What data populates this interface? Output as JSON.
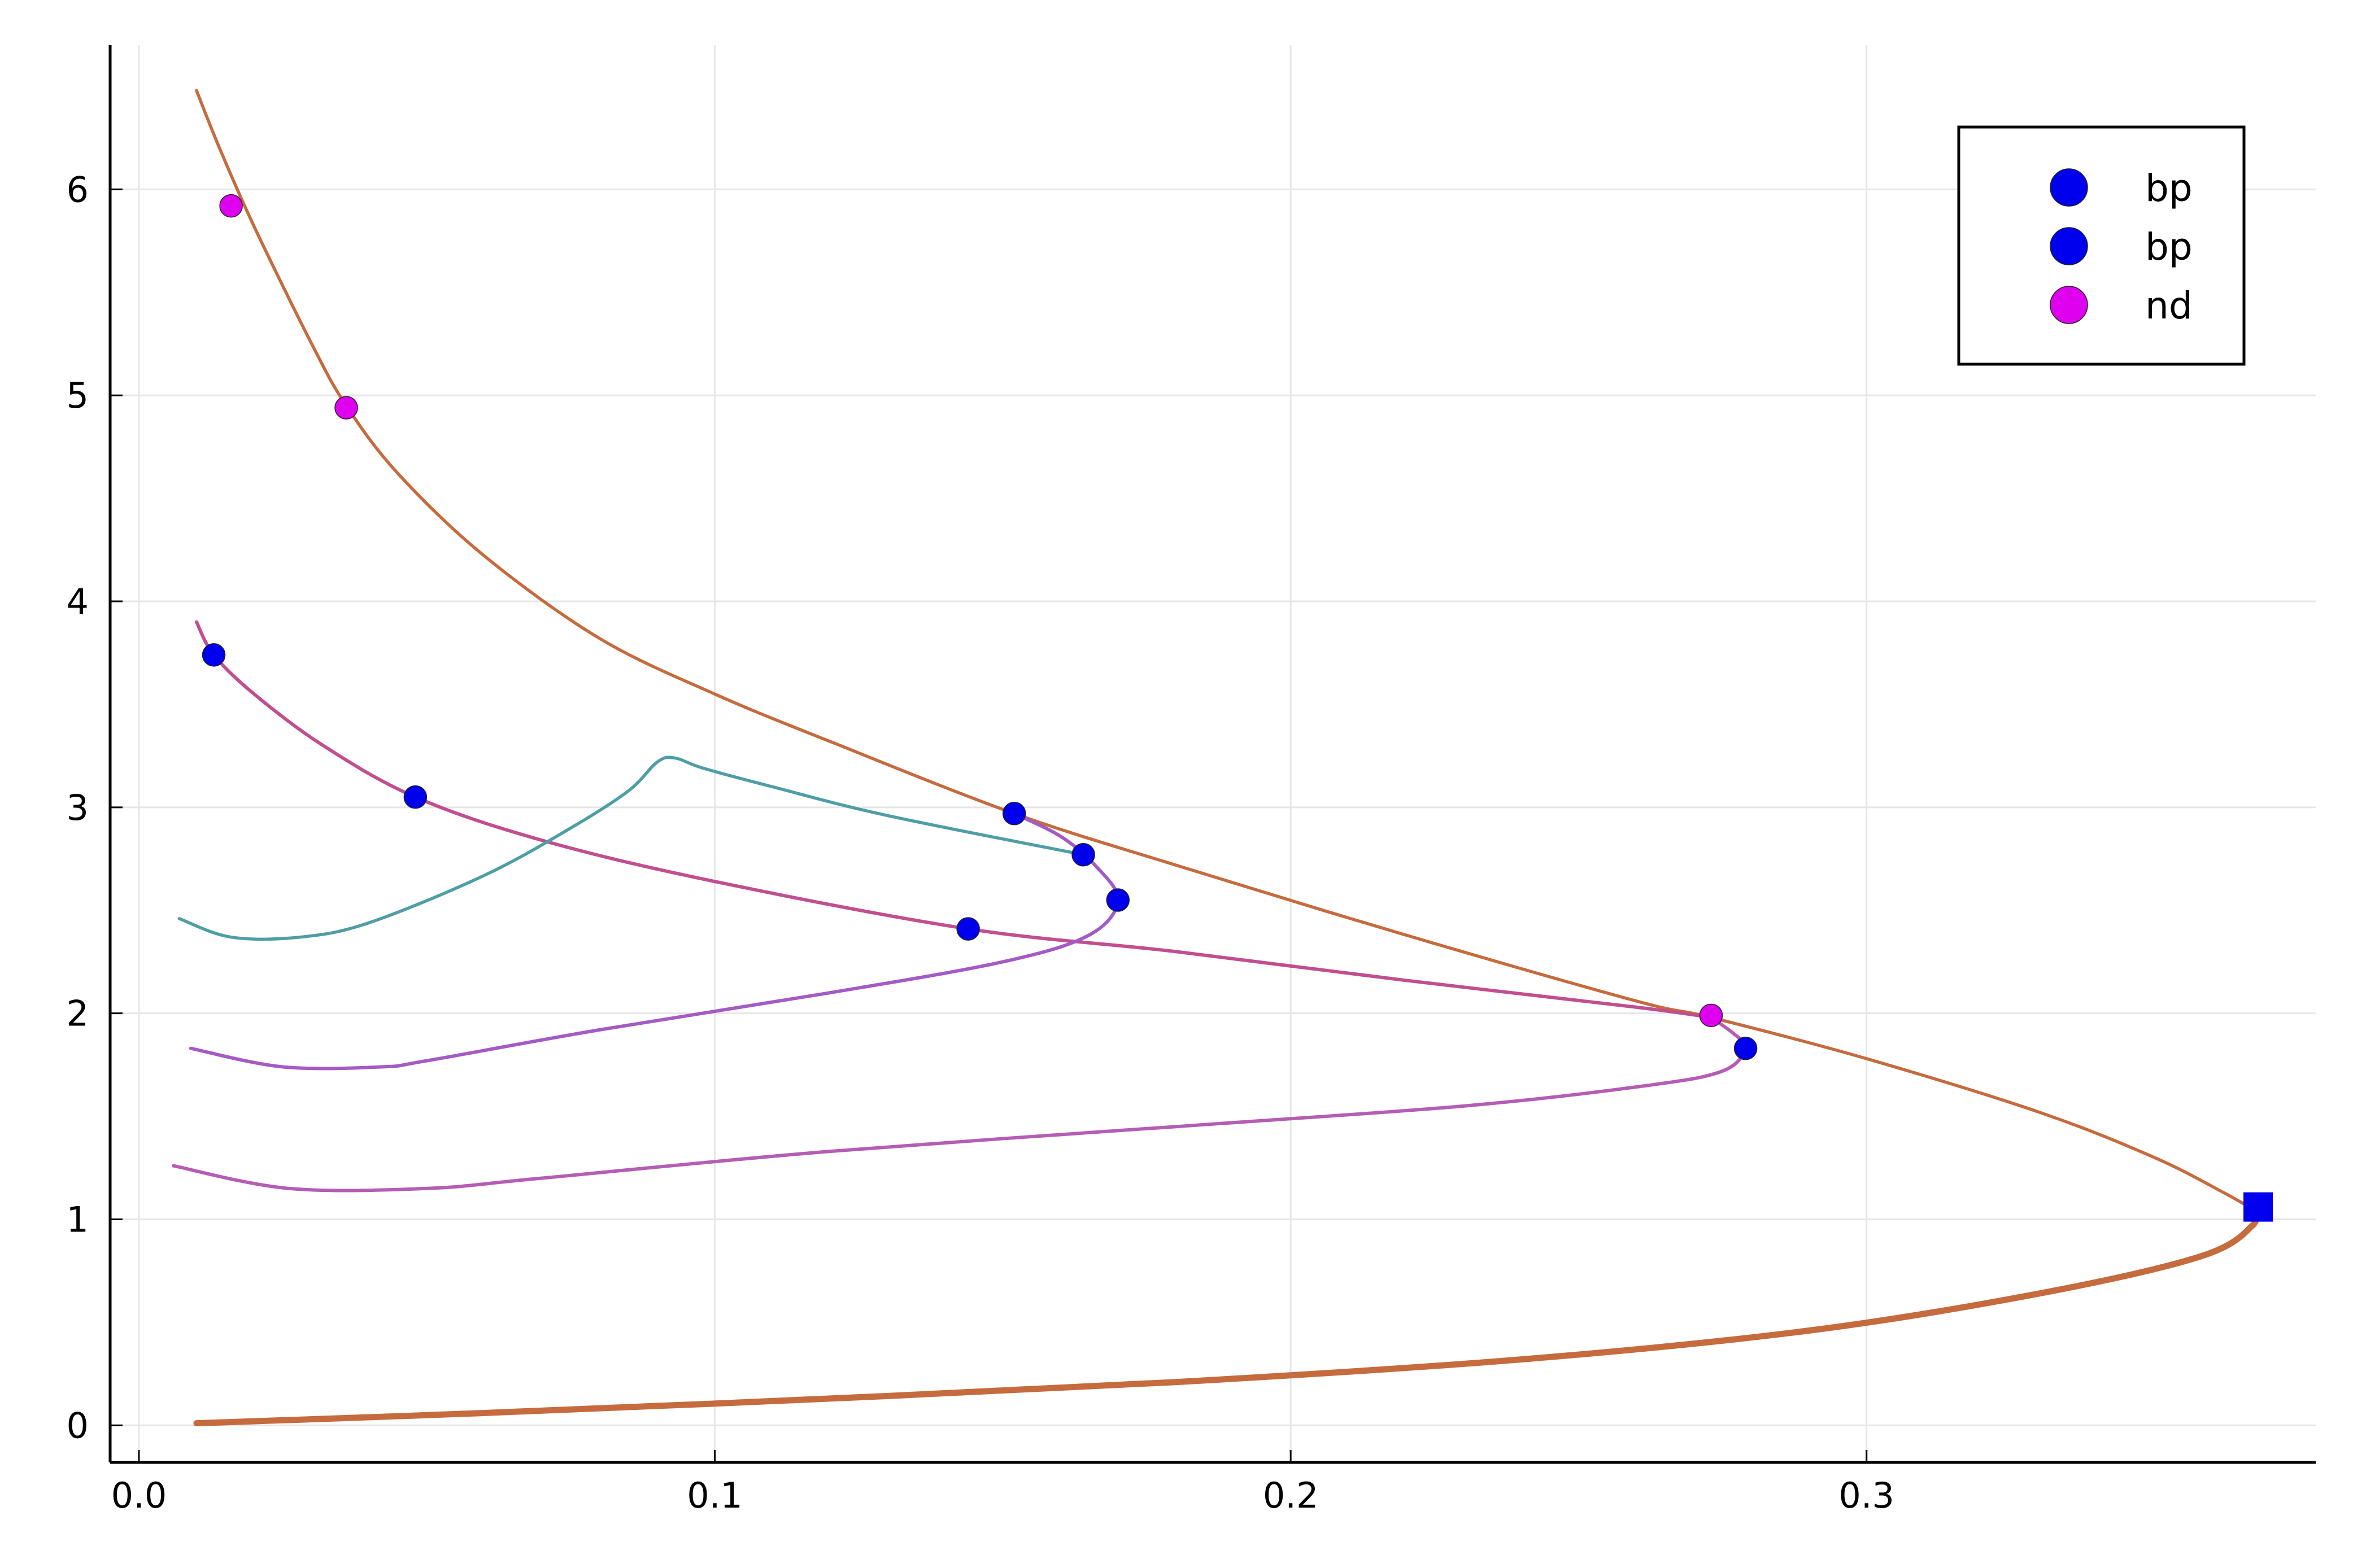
{
  "chart_data": {
    "type": "line",
    "title": "",
    "xlabel": "",
    "ylabel": "",
    "xlim": [
      -0.005,
      0.378
    ],
    "ylim": [
      -0.18,
      6.7
    ],
    "grid": true,
    "legend_position": "top-right",
    "xticks": [
      0.0,
      0.1,
      0.2,
      0.3
    ],
    "xtick_labels": [
      "0.0",
      "0.1",
      "0.2",
      "0.3"
    ],
    "yticks": [
      0,
      1,
      2,
      3,
      4,
      5,
      6
    ],
    "ytick_labels": [
      "0",
      "1",
      "2",
      "3",
      "4",
      "5",
      "6"
    ],
    "colors": {
      "main": "#c56b3e",
      "pink": "#c14f8f",
      "purple": "#a45bc4",
      "magenta_branch": "#b55db5",
      "teal": "#4e9ea4",
      "bp": "#0000ee",
      "nd": "#e000f0"
    },
    "legend": [
      {
        "label": "bp",
        "color": "#0000ee",
        "marker": "circle"
      },
      {
        "label": "bp",
        "color": "#0000ee",
        "marker": "circle"
      },
      {
        "label": "nd",
        "color": "#e000f0",
        "marker": "circle"
      }
    ],
    "series": [
      {
        "color": "#c56b3e",
        "width": 5.5,
        "points": [
          [
            0.01,
            6.48
          ],
          [
            0.014,
            6.2
          ],
          [
            0.02,
            5.82
          ],
          [
            0.03,
            5.25
          ],
          [
            0.036,
            4.95
          ],
          [
            0.045,
            4.62
          ],
          [
            0.06,
            4.22
          ],
          [
            0.08,
            3.82
          ],
          [
            0.1,
            3.55
          ],
          [
            0.12,
            3.32
          ],
          [
            0.152,
            2.97
          ],
          [
            0.18,
            2.72
          ],
          [
            0.22,
            2.38
          ],
          [
            0.26,
            2.06
          ],
          [
            0.273,
            1.98
          ],
          [
            0.3,
            1.78
          ],
          [
            0.33,
            1.52
          ],
          [
            0.35,
            1.3
          ],
          [
            0.362,
            1.13
          ],
          [
            0.367,
            1.05
          ]
        ]
      },
      {
        "color": "#c56b3e",
        "width": 11,
        "points": [
          [
            0.01,
            0.01
          ],
          [
            0.06,
            0.06
          ],
          [
            0.12,
            0.13
          ],
          [
            0.18,
            0.21
          ],
          [
            0.24,
            0.32
          ],
          [
            0.29,
            0.46
          ],
          [
            0.33,
            0.64
          ],
          [
            0.358,
            0.82
          ],
          [
            0.367,
            0.97
          ],
          [
            0.367,
            1.05
          ]
        ]
      },
      {
        "color": "#c14f8f",
        "width": 6,
        "points": [
          [
            0.01,
            3.9
          ],
          [
            0.013,
            3.74
          ],
          [
            0.02,
            3.55
          ],
          [
            0.032,
            3.3
          ],
          [
            0.048,
            3.05
          ],
          [
            0.07,
            2.84
          ],
          [
            0.1,
            2.64
          ],
          [
            0.144,
            2.41
          ],
          [
            0.18,
            2.3
          ],
          [
            0.22,
            2.16
          ],
          [
            0.26,
            2.03
          ],
          [
            0.273,
            1.98
          ]
        ]
      },
      {
        "color": "#a45bc4",
        "width": 6,
        "points": [
          [
            0.152,
            2.97
          ],
          [
            0.16,
            2.86
          ],
          [
            0.166,
            2.72
          ],
          [
            0.17,
            2.55
          ],
          [
            0.165,
            2.38
          ],
          [
            0.15,
            2.25
          ],
          [
            0.12,
            2.1
          ],
          [
            0.08,
            1.92
          ],
          [
            0.05,
            1.77
          ],
          [
            0.042,
            1.74
          ],
          [
            0.025,
            1.74
          ],
          [
            0.009,
            1.83
          ]
        ]
      },
      {
        "color": "#b55db5",
        "width": 6,
        "points": [
          [
            0.273,
            1.98
          ],
          [
            0.277,
            1.9
          ],
          [
            0.279,
            1.83
          ],
          [
            0.275,
            1.72
          ],
          [
            0.262,
            1.65
          ],
          [
            0.23,
            1.55
          ],
          [
            0.18,
            1.45
          ],
          [
            0.12,
            1.33
          ],
          [
            0.07,
            1.2
          ],
          [
            0.05,
            1.15
          ],
          [
            0.026,
            1.15
          ],
          [
            0.006,
            1.26
          ]
        ]
      },
      {
        "color": "#4e9ea4",
        "width": 5.5,
        "points": [
          [
            0.164,
            2.77
          ],
          [
            0.13,
            2.96
          ],
          [
            0.11,
            3.1
          ],
          [
            0.098,
            3.19
          ],
          [
            0.093,
            3.24
          ],
          [
            0.09,
            3.22
          ],
          [
            0.085,
            3.08
          ],
          [
            0.075,
            2.9
          ],
          [
            0.06,
            2.67
          ],
          [
            0.04,
            2.44
          ],
          [
            0.028,
            2.37
          ],
          [
            0.016,
            2.37
          ],
          [
            0.007,
            2.46
          ]
        ]
      }
    ],
    "points": [
      {
        "label": "bp",
        "color": "#0000ee",
        "x": 0.013,
        "y": 3.74
      },
      {
        "label": "bp",
        "color": "#0000ee",
        "x": 0.048,
        "y": 3.05
      },
      {
        "label": "bp",
        "color": "#0000ee",
        "x": 0.152,
        "y": 2.97
      },
      {
        "label": "bp",
        "color": "#0000ee",
        "x": 0.164,
        "y": 2.77
      },
      {
        "label": "bp",
        "color": "#0000ee",
        "x": 0.17,
        "y": 2.55
      },
      {
        "label": "bp",
        "color": "#0000ee",
        "x": 0.144,
        "y": 2.41
      },
      {
        "label": "bp",
        "color": "#0000ee",
        "x": 0.279,
        "y": 1.83
      },
      {
        "label": "nd",
        "color": "#e000f0",
        "x": 0.016,
        "y": 5.92
      },
      {
        "label": "nd",
        "color": "#e000f0",
        "x": 0.036,
        "y": 4.94
      },
      {
        "label": "nd",
        "color": "#e000f0",
        "x": 0.273,
        "y": 1.99
      }
    ],
    "square_marker": {
      "color": "#0000ee",
      "x": 0.368,
      "y": 1.06
    }
  }
}
